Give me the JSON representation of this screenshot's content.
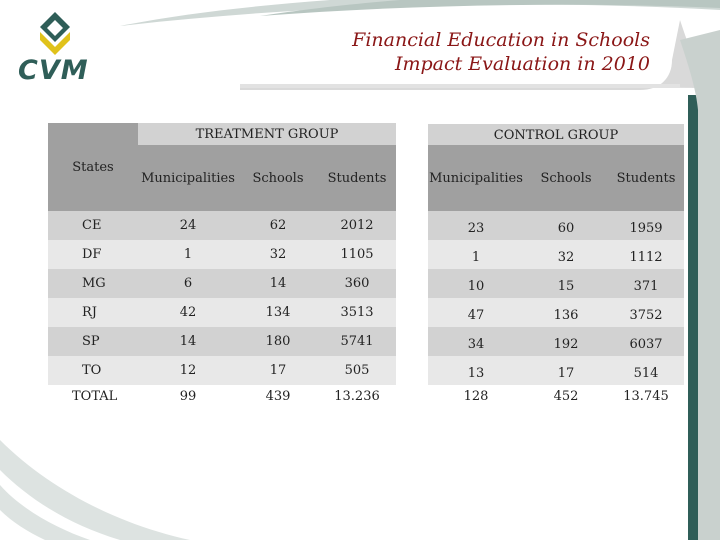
{
  "title": {
    "line1": "Financial Education in Schools",
    "line2": "Impact Evaluation in 2010"
  },
  "logo": {
    "text": "CVM",
    "icon": "cvm-diamond-logo"
  },
  "colors": {
    "title": "#8a1616",
    "header_dark": "#a0a0a0",
    "header_light": "#d2d2d2",
    "row_dark": "#d2d2d2",
    "row_light": "#e8e8e8",
    "logo_green": "#2f5e58",
    "logo_yellow": "#e0c21a"
  },
  "table": {
    "states_header": "States",
    "treatment_group": "TREATMENT GROUP",
    "control_group": "CONTROL GROUP",
    "columns": [
      "Municipalities",
      "Schools",
      "Students"
    ],
    "rows": [
      {
        "state": "CE",
        "treatment": [
          "24",
          "62",
          "2012"
        ],
        "control": [
          "23",
          "60",
          "1959"
        ]
      },
      {
        "state": "DF",
        "treatment": [
          "1",
          "32",
          "1105"
        ],
        "control": [
          "1",
          "32",
          "1112"
        ]
      },
      {
        "state": "MG",
        "treatment": [
          "6",
          "14",
          "360"
        ],
        "control": [
          "10",
          "15",
          "371"
        ]
      },
      {
        "state": "RJ",
        "treatment": [
          "42",
          "134",
          "3513"
        ],
        "control": [
          "47",
          "136",
          "3752"
        ]
      },
      {
        "state": "SP",
        "treatment": [
          "14",
          "180",
          "5741"
        ],
        "control": [
          "34",
          "192",
          "6037"
        ]
      },
      {
        "state": "TO",
        "treatment": [
          "12",
          "17",
          "505"
        ],
        "control": [
          "13",
          "17",
          "514"
        ]
      }
    ],
    "total": {
      "state": "TOTAL",
      "treatment": [
        "99",
        "439",
        "13.236"
      ],
      "control": [
        "128",
        "452",
        "13.745"
      ]
    }
  }
}
